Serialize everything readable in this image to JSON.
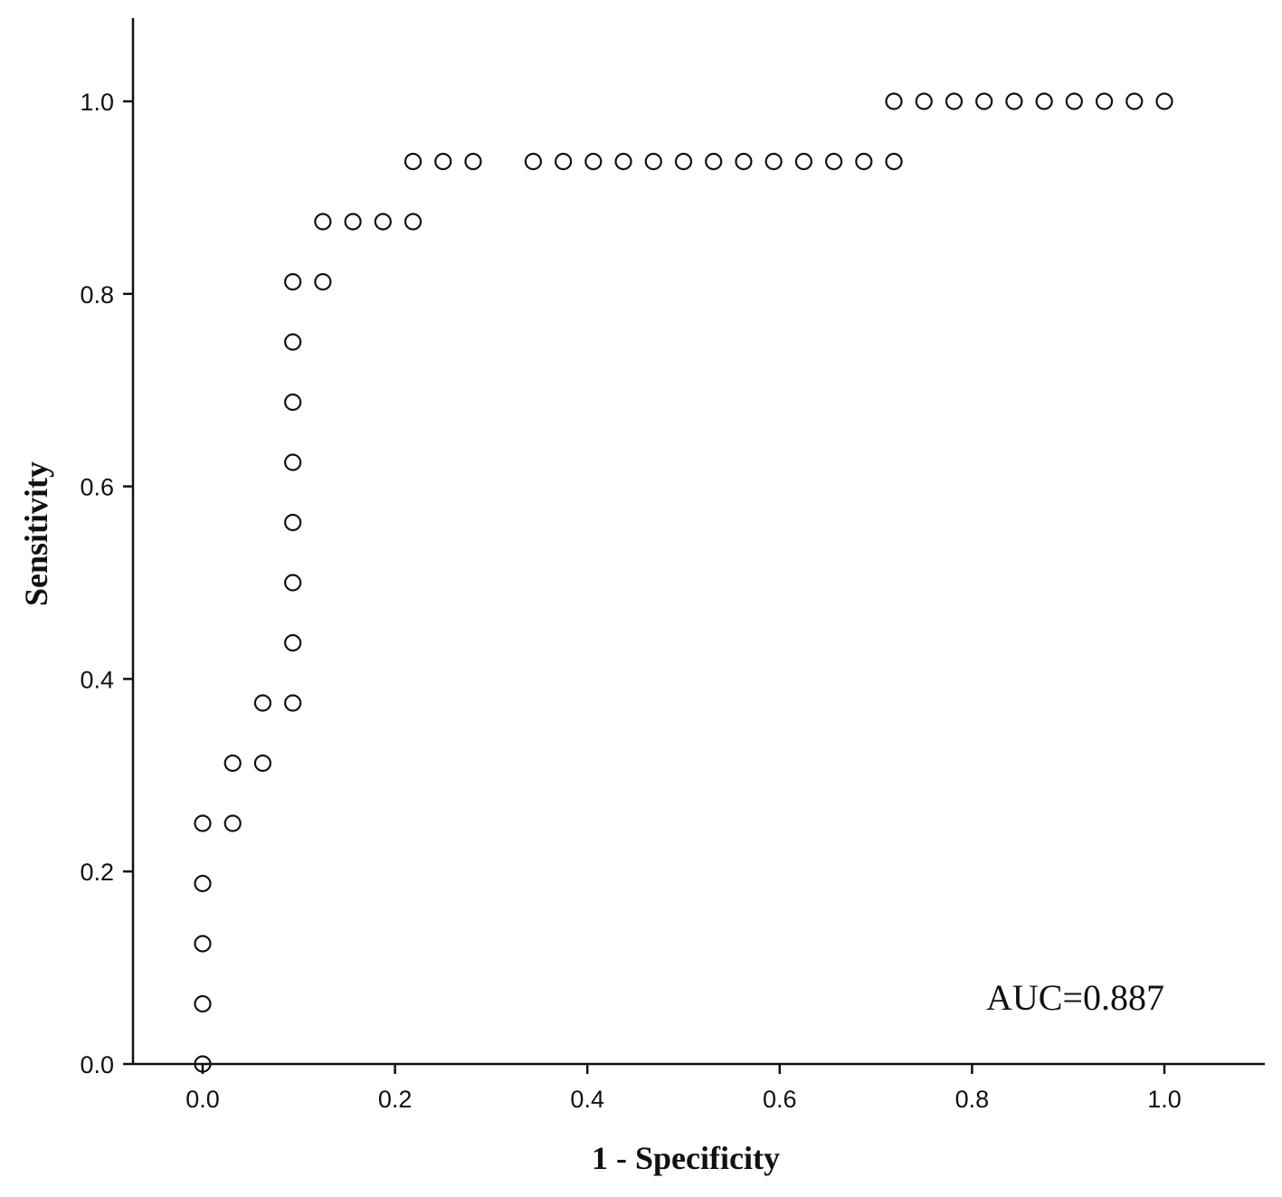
{
  "chart_data": {
    "type": "scatter",
    "title": "",
    "xlabel": "1 - Specificity",
    "ylabel": "Sensitivity",
    "xlim": [
      -0.072,
      1.05
    ],
    "ylim": [
      0.0,
      1.0
    ],
    "x_ticks": [
      "0.0",
      "0.2",
      "0.4",
      "0.6",
      "0.8",
      "1.0"
    ],
    "y_ticks": [
      "0.0",
      "0.2",
      "0.4",
      "0.6",
      "0.8",
      "1.0"
    ],
    "grid": false,
    "annotation": "AUC=0.887",
    "series": [
      {
        "marker": "open-circle",
        "points": [
          [
            0.0,
            0.0
          ],
          [
            0.0,
            0.0625
          ],
          [
            0.0,
            0.125
          ],
          [
            0.0,
            0.1875
          ],
          [
            0.0,
            0.25
          ],
          [
            0.03125,
            0.25
          ],
          [
            0.03125,
            0.3125
          ],
          [
            0.0625,
            0.3125
          ],
          [
            0.0625,
            0.375
          ],
          [
            0.09375,
            0.375
          ],
          [
            0.09375,
            0.4375
          ],
          [
            0.09375,
            0.5
          ],
          [
            0.09375,
            0.5625
          ],
          [
            0.09375,
            0.625
          ],
          [
            0.09375,
            0.6875
          ],
          [
            0.09375,
            0.75
          ],
          [
            0.09375,
            0.8125
          ],
          [
            0.125,
            0.8125
          ],
          [
            0.125,
            0.875
          ],
          [
            0.15625,
            0.875
          ],
          [
            0.1875,
            0.875
          ],
          [
            0.21875,
            0.875
          ],
          [
            0.21875,
            0.9375
          ],
          [
            0.25,
            0.9375
          ],
          [
            0.28125,
            0.9375
          ],
          [
            0.34375,
            0.9375
          ],
          [
            0.375,
            0.9375
          ],
          [
            0.40625,
            0.9375
          ],
          [
            0.4375,
            0.9375
          ],
          [
            0.46875,
            0.9375
          ],
          [
            0.5,
            0.9375
          ],
          [
            0.53125,
            0.9375
          ],
          [
            0.5625,
            0.9375
          ],
          [
            0.59375,
            0.9375
          ],
          [
            0.625,
            0.9375
          ],
          [
            0.65625,
            0.9375
          ],
          [
            0.6875,
            0.9375
          ],
          [
            0.71875,
            0.9375
          ],
          [
            0.71875,
            1.0
          ],
          [
            0.75,
            1.0
          ],
          [
            0.78125,
            1.0
          ],
          [
            0.8125,
            1.0
          ],
          [
            0.84375,
            1.0
          ],
          [
            0.875,
            1.0
          ],
          [
            0.90625,
            1.0
          ],
          [
            0.9375,
            1.0
          ],
          [
            0.96875,
            1.0
          ],
          [
            1.0,
            1.0
          ]
        ]
      }
    ]
  }
}
